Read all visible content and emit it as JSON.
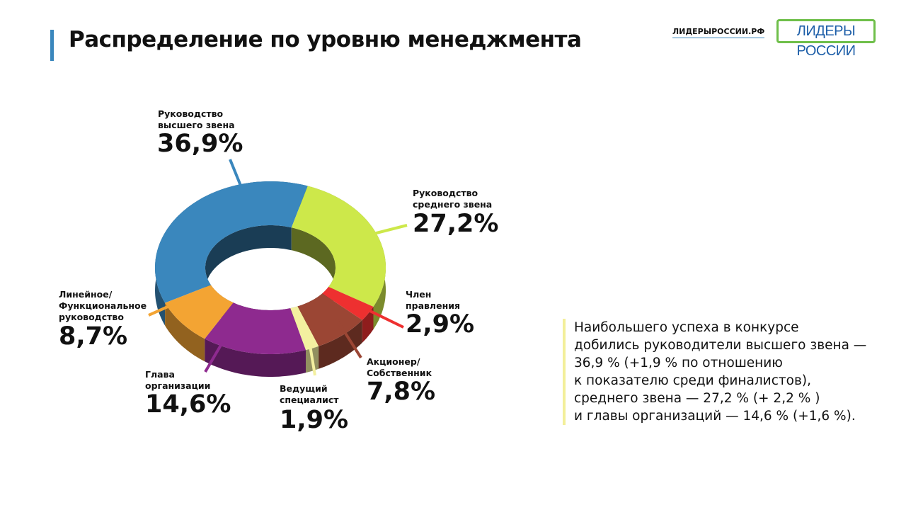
{
  "chart_data": {
    "type": "pie",
    "title": "Распределение по уровню менеджмента",
    "categories": [
      "Руководство\nвысшего звена",
      "Руководство\nсреднего звена",
      "Член\nправления",
      "Акционер/\nСобственник",
      "Ведущий\nспециалист",
      "Глава\nорганизации",
      "Линейное/\nФункциональное\nруководство"
    ],
    "values": [
      36.9,
      27.2,
      2.9,
      7.8,
      1.9,
      14.6,
      8.7
    ],
    "value_labels": [
      "36,9%",
      "27,2%",
      "2,9%",
      "7,8%",
      "1,9%",
      "14,6%",
      "8,7%"
    ],
    "colors": [
      "#3a87bd",
      "#cde84a",
      "#ee3030",
      "#9b4634",
      "#f3f0a0",
      "#8e2a8f",
      "#f3a433"
    ]
  },
  "header": {
    "site": "ЛИДЕРЫРОССИИ.РФ",
    "logo": "ЛИДЕРЫ РОССИИ"
  },
  "note": "Наибольшего успеха в конкурсе\nдобились руководители высшего звена —\n36,9 % (+1,9 % по отношению\nк  показателю среди финалистов),\nсреднего звена — 27,2 % (+ 2,2 % )\nи главы организаций — 14,6 % (+1,6 %)."
}
